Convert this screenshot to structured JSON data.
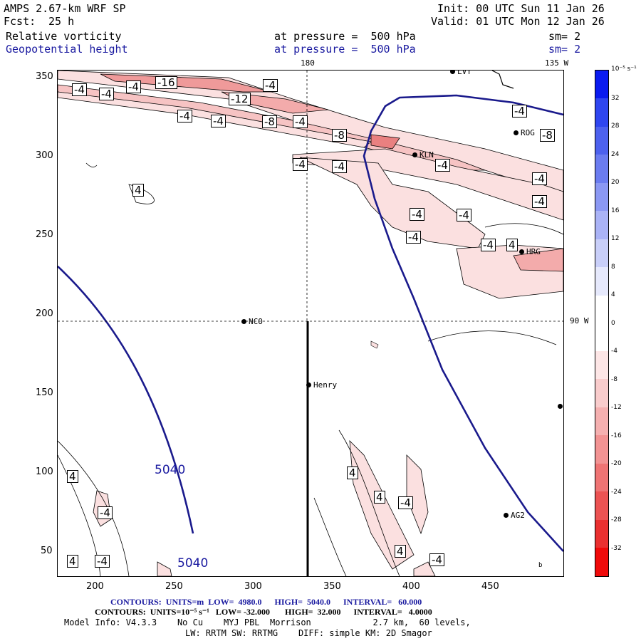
{
  "header": {
    "model": "AMPS 2.67-km WRF SP",
    "fcst_label": "Fcst:",
    "fcst_value": "25 h",
    "init": "Init: 00 UTC Sun 11 Jan 26",
    "valid": "Valid: 01 UTC Mon 12 Jan 26",
    "field1": "Relative vorticity",
    "field1_level": "at pressure =  500 hPa",
    "field1_sm": "sm= 2",
    "field2": "Geopotential height",
    "field2_level": "at pressure =  500 hPa",
    "field2_sm": "sm= 2"
  },
  "map": {
    "meridian_label_top": "180",
    "meridian_label_right_top": "135 W",
    "parallel_label_right": "90 W",
    "x_ticks": [
      "200",
      "250",
      "300",
      "350",
      "400",
      "450"
    ],
    "y_ticks": [
      "350",
      "300",
      "250",
      "200",
      "150",
      "100",
      "50"
    ],
    "stations": [
      {
        "name": "LVT"
      },
      {
        "name": "ROG"
      },
      {
        "name": "KLN"
      },
      {
        "name": "HRG"
      },
      {
        "name": "NCO"
      },
      {
        "name": "Henry"
      },
      {
        "name": "AG2"
      },
      {
        "name": ""
      }
    ],
    "height_labels": [
      "5040",
      "5040"
    ],
    "vort_labels": [
      "-4",
      "-4",
      "-4",
      "-16",
      "-4",
      "-12",
      "-4",
      "-4",
      "-8",
      "-4",
      "-8",
      "-4",
      "-4",
      "-4",
      "-4",
      "-8",
      "-4",
      "-4",
      "-4",
      "-4",
      "-4",
      "4",
      "-4",
      "4",
      "4",
      "4",
      "4",
      "-4",
      "-4",
      "4",
      "4",
      "-4",
      "-4"
    ],
    "corner_mark": "b"
  },
  "colorbar": {
    "unit": "10⁻⁵ s⁻¹",
    "labels": [
      "32",
      "28",
      "24",
      "20",
      "16",
      "12",
      "8",
      "4",
      "0",
      "-4",
      "-8",
      "-12",
      "-16",
      "-20",
      "-24",
      "-28",
      "-32"
    ]
  },
  "footer": {
    "line1": "CONTOURS:  UNITS=m  LOW=  4980.0      HIGH=  5040.0      INTERVAL=   60.000",
    "line2": "CONTOURS:  UNITS=10⁻⁵ s⁻¹   LOW= -32.000       HIGH=  32.000      INTERVAL=   4.0000",
    "line3": "Model Info: V4.3.3    No Cu    MYJ PBL  Morrison            2.7 km,  60 levels,",
    "line4": "LW: RRTM SW: RRTMG    DIFF: simple KM: 2D Smagor"
  }
}
